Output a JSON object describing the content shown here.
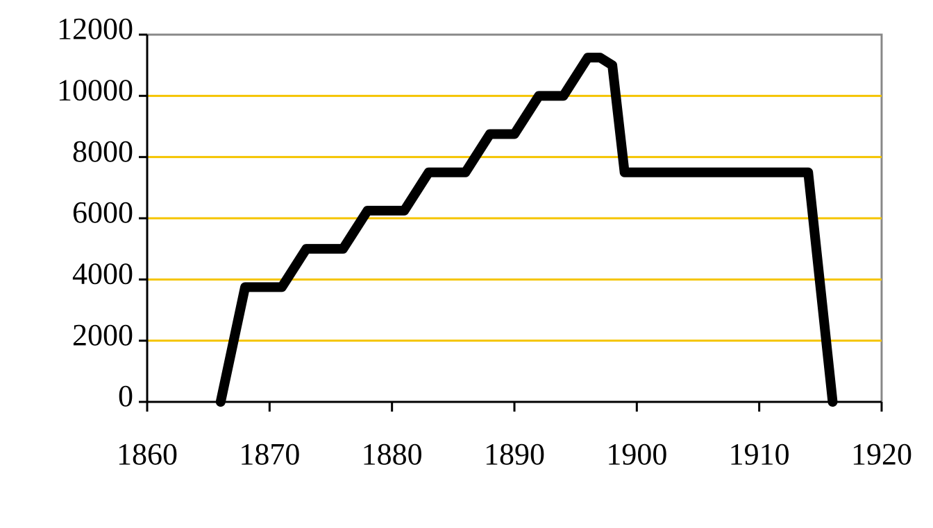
{
  "chart_data": {
    "type": "line",
    "x": [
      1866,
      1868,
      1871,
      1872,
      1873,
      1876,
      1878,
      1881,
      1882,
      1883,
      1886,
      1888,
      1890,
      1891,
      1892,
      1894,
      1895,
      1896,
      1897,
      1898,
      1899,
      1914,
      1915,
      1916
    ],
    "series": [
      {
        "color": "#000000",
        "values": [
          0,
          3750,
          3750,
          4375,
          5000,
          5000,
          6250,
          6250,
          6875,
          7500,
          7500,
          8750,
          8750,
          9375,
          10000,
          10000,
          10625,
          11250,
          11250,
          11000,
          7500,
          7500,
          3750,
          0
        ]
      }
    ],
    "xlim": [
      1860,
      1920
    ],
    "xticks": [
      1860,
      1870,
      1880,
      1890,
      1900,
      1910,
      1920
    ],
    "ylim": [
      0,
      12000
    ],
    "yticks": [
      0,
      2000,
      4000,
      6000,
      8000,
      10000,
      12000
    ],
    "grid": true,
    "grid_color": "#f5c400"
  }
}
